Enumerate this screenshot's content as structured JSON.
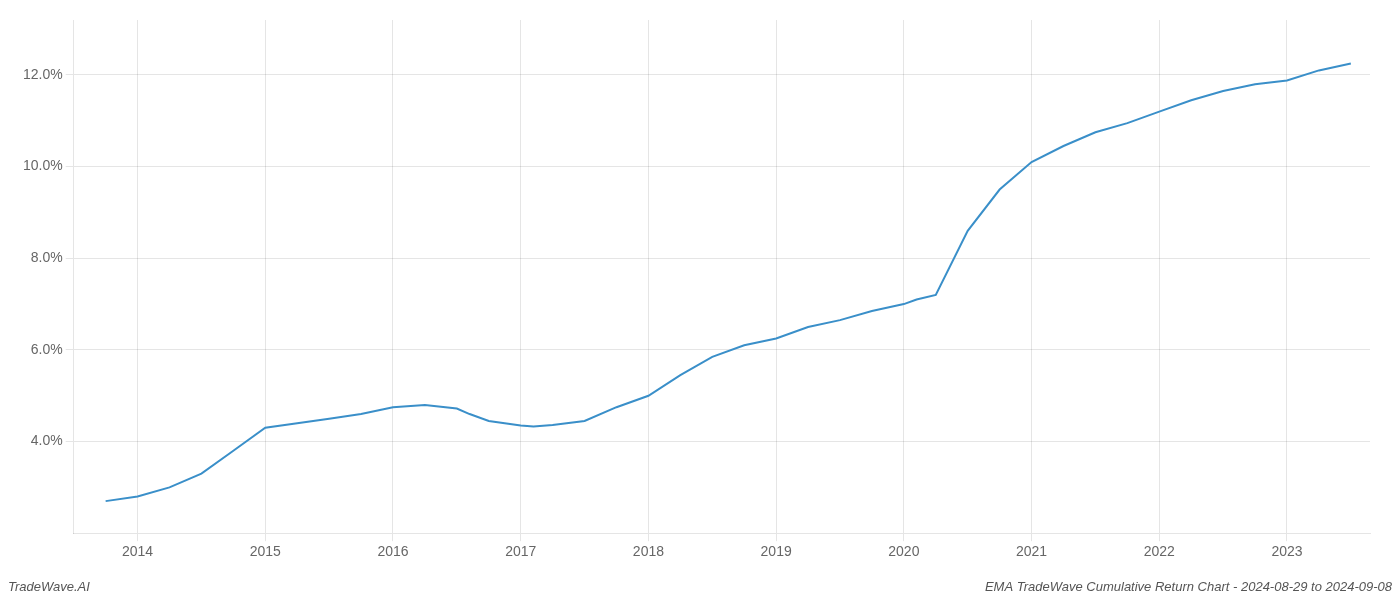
{
  "chart_data": {
    "type": "line",
    "x": [
      2013.75,
      2014.0,
      2014.25,
      2014.5,
      2014.75,
      2015.0,
      2015.25,
      2015.5,
      2015.75,
      2016.0,
      2016.25,
      2016.5,
      2016.6,
      2016.75,
      2017.0,
      2017.1,
      2017.25,
      2017.5,
      2017.75,
      2018.0,
      2018.25,
      2018.5,
      2018.75,
      2019.0,
      2019.25,
      2019.5,
      2019.75,
      2020.0,
      2020.1,
      2020.25,
      2020.5,
      2020.75,
      2021.0,
      2021.25,
      2021.5,
      2021.75,
      2022.0,
      2022.25,
      2022.5,
      2022.75,
      2023.0,
      2023.25,
      2023.5
    ],
    "values": [
      2.7,
      2.8,
      3.0,
      3.3,
      3.8,
      4.3,
      4.4,
      4.5,
      4.6,
      4.75,
      4.8,
      4.72,
      4.6,
      4.45,
      4.35,
      4.33,
      4.36,
      4.45,
      4.75,
      5.0,
      5.45,
      5.85,
      6.1,
      6.25,
      6.5,
      6.65,
      6.85,
      7.0,
      7.1,
      7.2,
      8.6,
      9.5,
      10.1,
      10.45,
      10.75,
      10.95,
      11.2,
      11.45,
      11.65,
      11.8,
      11.88,
      12.1,
      12.25
    ],
    "color": "#3a8fc9",
    "xlim": [
      2013.5,
      2023.65
    ],
    "ylim": [
      2.0,
      13.2
    ],
    "xticks": [
      2014,
      2015,
      2016,
      2017,
      2018,
      2019,
      2020,
      2021,
      2022,
      2023
    ],
    "yticks": [
      {
        "value": 4.0,
        "label": "4.0%"
      },
      {
        "value": 6.0,
        "label": "6.0%"
      },
      {
        "value": 8.0,
        "label": "8.0%"
      },
      {
        "value": 10.0,
        "label": "10.0%"
      },
      {
        "value": 12.0,
        "label": "12.0%"
      }
    ],
    "grid": true,
    "annotations": [
      "TradeWave.AI",
      "EMA TradeWave Cumulative Return Chart - 2024-08-29 to 2024-09-08"
    ]
  }
}
